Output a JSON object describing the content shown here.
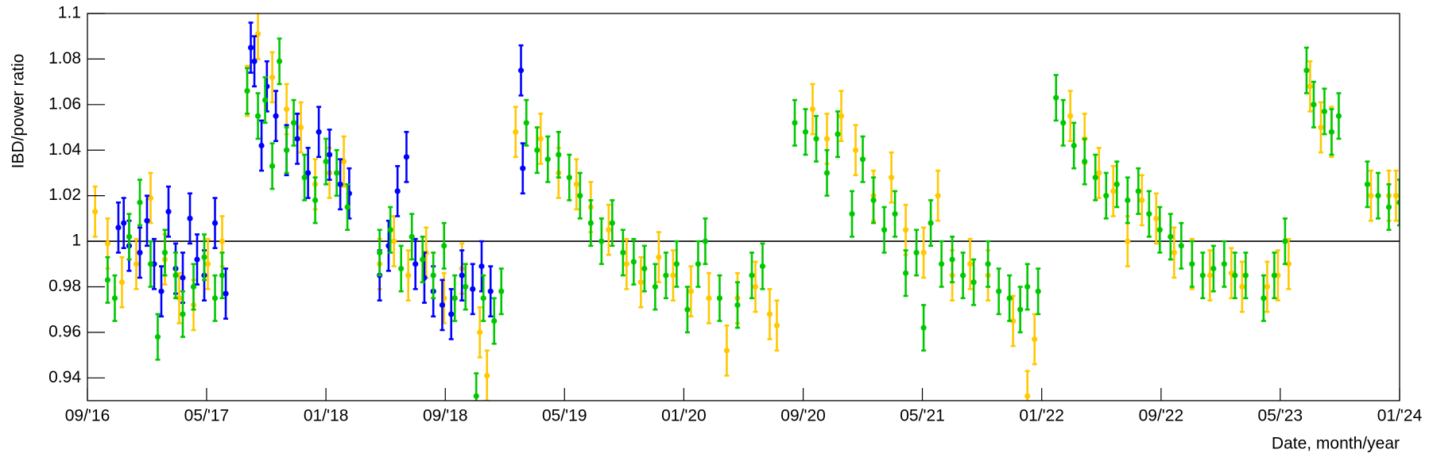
{
  "chart_data": {
    "type": "scatter",
    "ylabel": "IBD/power ratio",
    "xlabel": "Date, month/year",
    "xlim": [
      2016.667,
      2024.0
    ],
    "ylim": [
      0.93,
      1.1
    ],
    "yticks": [
      0.94,
      0.96,
      0.98,
      1,
      1.02,
      1.04,
      1.06,
      1.08,
      1.1
    ],
    "xticks": [
      {
        "value": 2016.667,
        "label": "09/'16"
      },
      {
        "value": 2017.333,
        "label": "05/'17"
      },
      {
        "value": 2018.0,
        "label": "01/'18"
      },
      {
        "value": 2018.667,
        "label": "09/'18"
      },
      {
        "value": 2019.333,
        "label": "05/'19"
      },
      {
        "value": 2020.0,
        "label": "01/'20"
      },
      {
        "value": 2020.667,
        "label": "09/'20"
      },
      {
        "value": 2021.333,
        "label": "05/'21"
      },
      {
        "value": 2022.0,
        "label": "01/'22"
      },
      {
        "value": 2022.667,
        "label": "09/'22"
      },
      {
        "value": 2023.333,
        "label": "05/'23"
      },
      {
        "value": 2024.0,
        "label": "01/'24"
      }
    ],
    "hline": 1,
    "series": [
      {
        "color": "#ffc800",
        "error": 0.011,
        "x": [
          2016.71,
          2016.78,
          2016.86,
          2016.94,
          2017.02,
          2017.1,
          2017.18,
          2017.26,
          2017.34,
          2017.42,
          2017.56,
          2017.62,
          2017.7,
          2017.78,
          2017.86,
          2017.94,
          2018.02,
          2018.1,
          2018.3,
          2018.38,
          2018.46,
          2018.56,
          2018.66,
          2018.76,
          2018.86,
          2018.9,
          2019.06,
          2019.2,
          2019.3,
          2019.4,
          2019.48,
          2019.58,
          2019.68,
          2019.76,
          2019.86,
          2019.94,
          2020.04,
          2020.14,
          2020.24,
          2020.3,
          2020.4,
          2020.48,
          2020.52,
          2020.72,
          2020.8,
          2020.88,
          2020.96,
          2021.06,
          2021.16,
          2021.24,
          2021.34,
          2021.42,
          2021.5,
          2021.6,
          2021.7,
          2021.84,
          2021.92,
          2021.96,
          2022.16,
          2022.24,
          2022.32,
          2022.4,
          2022.48,
          2022.56,
          2022.64,
          2022.74,
          2022.84,
          2022.94,
          2023.06,
          2023.12,
          2023.26,
          2023.32,
          2023.38,
          2023.5,
          2023.56,
          2023.62,
          2023.84,
          2023.94,
          2023.98
        ],
        "values": [
          1.013,
          0.999,
          0.982,
          0.99,
          1.019,
          0.992,
          0.975,
          0.972,
          0.99,
          1.0,
          1.066,
          1.091,
          1.072,
          1.058,
          1.05,
          1.025,
          1.03,
          1.035,
          0.99,
          1.0,
          0.985,
          0.995,
          0.975,
          0.988,
          0.96,
          0.941,
          1.048,
          1.045,
          1.03,
          1.025,
          1.015,
          1.005,
          0.99,
          0.982,
          0.993,
          0.985,
          0.978,
          0.975,
          0.952,
          0.975,
          0.98,
          0.968,
          0.963,
          1.058,
          1.045,
          1.055,
          1.04,
          1.02,
          1.028,
          1.005,
          0.995,
          1.02,
          0.985,
          0.99,
          0.985,
          0.965,
          0.932,
          0.957,
          1.055,
          1.045,
          1.03,
          1.022,
          1.0,
          1.018,
          1.01,
          0.995,
          0.99,
          0.985,
          0.986,
          0.98,
          0.98,
          0.985,
          0.99,
          1.068,
          1.05,
          1.048,
          1.02,
          1.02,
          1.02
        ]
      },
      {
        "color": "#0000ff",
        "error": 0.011,
        "x": [
          2016.84,
          2016.87,
          2016.9,
          2016.96,
          2017.0,
          2017.04,
          2017.08,
          2017.12,
          2017.16,
          2017.2,
          2017.24,
          2017.28,
          2017.32,
          2017.38,
          2017.44,
          2017.58,
          2017.6,
          2017.64,
          2017.67,
          2017.72,
          2017.78,
          2017.84,
          2017.9,
          2017.96,
          2018.02,
          2018.08,
          2018.13,
          2018.3,
          2018.35,
          2018.4,
          2018.45,
          2018.5,
          2018.55,
          2018.6,
          2018.65,
          2018.7,
          2018.76,
          2018.82,
          2018.87,
          2018.92,
          2019.09,
          2019.1
        ],
        "values": [
          1.006,
          1.008,
          0.998,
          0.995,
          1.009,
          0.99,
          0.978,
          1.013,
          0.988,
          0.984,
          1.01,
          0.992,
          0.985,
          1.008,
          0.977,
          1.085,
          1.079,
          1.042,
          1.068,
          1.055,
          1.04,
          1.045,
          1.03,
          1.048,
          1.038,
          1.025,
          1.021,
          0.985,
          0.998,
          1.022,
          1.037,
          0.99,
          0.984,
          0.978,
          0.972,
          0.968,
          0.985,
          0.979,
          0.989,
          0.978,
          1.075,
          1.032
        ]
      },
      {
        "color": "#00c800",
        "error": 0.01,
        "x": [
          2016.78,
          2016.82,
          2016.9,
          2016.96,
          2017.02,
          2017.06,
          2017.1,
          2017.16,
          2017.2,
          2017.26,
          2017.32,
          2017.38,
          2017.42,
          2017.56,
          2017.62,
          2017.66,
          2017.7,
          2017.74,
          2017.78,
          2017.82,
          2017.88,
          2017.94,
          2018.0,
          2018.06,
          2018.12,
          2018.3,
          2018.36,
          2018.42,
          2018.48,
          2018.54,
          2018.6,
          2018.66,
          2018.72,
          2018.78,
          2018.84,
          2018.88,
          2018.94,
          2018.98,
          2019.12,
          2019.18,
          2019.24,
          2019.3,
          2019.36,
          2019.42,
          2019.48,
          2019.54,
          2019.6,
          2019.66,
          2019.72,
          2019.78,
          2019.84,
          2019.9,
          2019.96,
          2020.02,
          2020.08,
          2020.12,
          2020.2,
          2020.3,
          2020.38,
          2020.44,
          2020.62,
          2020.68,
          2020.74,
          2020.8,
          2020.86,
          2020.94,
          2021.0,
          2021.06,
          2021.12,
          2021.18,
          2021.24,
          2021.3,
          2021.34,
          2021.38,
          2021.44,
          2021.5,
          2021.56,
          2021.62,
          2021.7,
          2021.76,
          2021.82,
          2021.88,
          2021.92,
          2021.98,
          2022.08,
          2022.12,
          2022.18,
          2022.24,
          2022.3,
          2022.36,
          2022.42,
          2022.48,
          2022.54,
          2022.6,
          2022.66,
          2022.72,
          2022.78,
          2022.84,
          2022.9,
          2022.96,
          2023.02,
          2023.08,
          2023.14,
          2023.24,
          2023.3,
          2023.36,
          2023.48,
          2023.52,
          2023.58,
          2023.62,
          2023.66,
          2023.82,
          2023.88,
          2023.94,
          2024.0
        ],
        "values": [
          0.983,
          0.975,
          1.002,
          1.017,
          0.99,
          0.958,
          0.995,
          0.985,
          0.968,
          0.98,
          0.993,
          0.975,
          0.985,
          1.066,
          1.055,
          1.062,
          1.033,
          1.079,
          1.04,
          1.052,
          1.028,
          1.018,
          1.035,
          1.03,
          1.015,
          0.995,
          1.005,
          0.988,
          1.002,
          0.992,
          0.985,
          0.998,
          0.975,
          0.98,
          0.932,
          0.975,
          0.965,
          0.978,
          1.052,
          1.04,
          1.036,
          1.038,
          1.028,
          1.02,
          1.008,
          1.0,
          1.008,
          0.995,
          0.991,
          0.988,
          0.98,
          0.985,
          0.99,
          0.97,
          0.99,
          1.0,
          0.975,
          0.972,
          0.985,
          0.989,
          1.052,
          1.048,
          1.045,
          1.03,
          1.047,
          1.012,
          1.036,
          1.018,
          1.005,
          1.012,
          0.986,
          0.995,
          0.962,
          1.008,
          0.99,
          0.992,
          0.985,
          0.982,
          0.99,
          0.978,
          0.975,
          0.97,
          0.98,
          0.978,
          1.063,
          1.052,
          1.042,
          1.035,
          1.028,
          1.02,
          1.025,
          1.018,
          1.022,
          1.012,
          1.005,
          1.002,
          0.998,
          0.99,
          0.985,
          0.988,
          0.99,
          0.985,
          0.985,
          0.975,
          0.985,
          1.0,
          1.075,
          1.06,
          1.057,
          1.048,
          1.055,
          1.025,
          1.02,
          1.015,
          1.017
        ]
      }
    ]
  }
}
